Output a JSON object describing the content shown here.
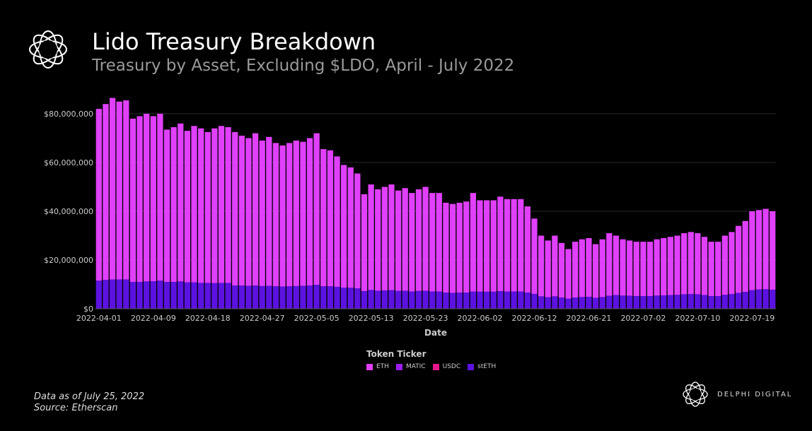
{
  "header": {
    "title": "Lido Treasury Breakdown",
    "subtitle": "Treasury by Asset, Excluding $LDO, April - July 2022",
    "logo_icon": "lido-flower-logo-icon"
  },
  "footer": {
    "data_as_of": "Data as of July 25, 2022",
    "source": "Source: Etherscan"
  },
  "brand": {
    "name": "DELPHI DIGITAL",
    "logo_icon": "delphi-flower-logo-icon"
  },
  "legend": {
    "title": "Token Ticker",
    "items": [
      {
        "label": "ETH",
        "color": "#e040fb"
      },
      {
        "label": "MATIC",
        "color": "#9d1cf0"
      },
      {
        "label": "USDC",
        "color": "#e8168c"
      },
      {
        "label": "stETH",
        "color": "#5b12e0"
      }
    ]
  },
  "chart_data": {
    "type": "bar",
    "stacked": true,
    "xlabel": "Date",
    "ylabel": "",
    "ylim": [
      0,
      80000000
    ],
    "yticks": [
      "$0",
      "$20,000,000",
      "$40,000,000",
      "$60,000,000",
      "$80,000,000"
    ],
    "ytick_values": [
      0,
      20000000,
      40000000,
      60000000,
      80000000
    ],
    "xtick_labels": [
      "2022-04-01",
      "2022-04-09",
      "2022-04-18",
      "2022-04-27",
      "2022-05-05",
      "2022-05-13",
      "2022-05-23",
      "2022-06-02",
      "2022-06-12",
      "2022-06-21",
      "2022-07-02",
      "2022-07-10",
      "2022-07-19"
    ],
    "xtick_indices": [
      0,
      8,
      16,
      24,
      32,
      40,
      48,
      56,
      64,
      72,
      80,
      88,
      96
    ],
    "grid": true,
    "colors": {
      "ETH": "#e040fb",
      "MATIC": "#9d1cf0",
      "USDC": "#e8168c",
      "stETH": "#5b12e0"
    },
    "totals": [
      82,
      84,
      86.5,
      85,
      85.5,
      78,
      79,
      80,
      79,
      80,
      73.5,
      74.5,
      76,
      73,
      75,
      74,
      72.5,
      74,
      75,
      74.5,
      72.5,
      71,
      70,
      72,
      69,
      70.5,
      68,
      67,
      68,
      69,
      68.5,
      70,
      72,
      65.5,
      65,
      62.5,
      59,
      58,
      55.5,
      47,
      51,
      49,
      50,
      51,
      48.5,
      49.5,
      47.5,
      49,
      50,
      47.5,
      47.5,
      43.5,
      43,
      43.5,
      44,
      47.5,
      44.5,
      44.5,
      44.5,
      46,
      45,
      45,
      45,
      42,
      37,
      30,
      28,
      30,
      27,
      24.5,
      27.5,
      28.5,
      29,
      26.5,
      28.5,
      31,
      30,
      28.5,
      28,
      27.5,
      27.5,
      27.5,
      28.5,
      29,
      29.5,
      30,
      31,
      31.5,
      31,
      29.5,
      27.5,
      27.5,
      30,
      31.5,
      34,
      36,
      40,
      40.5,
      41,
      40
    ],
    "stETH_values": [
      11.5,
      11.8,
      12,
      12,
      12,
      11,
      11,
      11.2,
      11.3,
      11.5,
      11,
      11,
      11.2,
      10.8,
      10.8,
      10.6,
      10.6,
      10.5,
      10.6,
      10.6,
      9.5,
      9.5,
      9.4,
      9.5,
      9.3,
      9.4,
      9.2,
      9.1,
      9.2,
      9.3,
      9.4,
      9.5,
      9.8,
      9.2,
      9.2,
      9.0,
      8.6,
      8.6,
      8.4,
      7.2,
      7.7,
      7.4,
      7.5,
      7.6,
      7.3,
      7.4,
      7.1,
      7.3,
      7.4,
      7.1,
      7.1,
      6.6,
      6.5,
      6.6,
      6.6,
      7.1,
      7.0,
      7.0,
      7.0,
      7.2,
      7.1,
      7.1,
      7.1,
      6.6,
      6.1,
      5.1,
      4.7,
      5.1,
      4.6,
      4.2,
      4.6,
      4.8,
      4.9,
      4.5,
      4.8,
      5.3,
      5.6,
      5.4,
      5.3,
      5.2,
      5.2,
      5.2,
      5.4,
      5.5,
      5.6,
      5.7,
      5.9,
      6.0,
      5.9,
      5.6,
      5.2,
      5.2,
      5.7,
      6.0,
      6.5,
      6.9,
      7.6,
      7.9,
      8.0,
      7.8
    ],
    "unit_note": "values in millions USD"
  }
}
